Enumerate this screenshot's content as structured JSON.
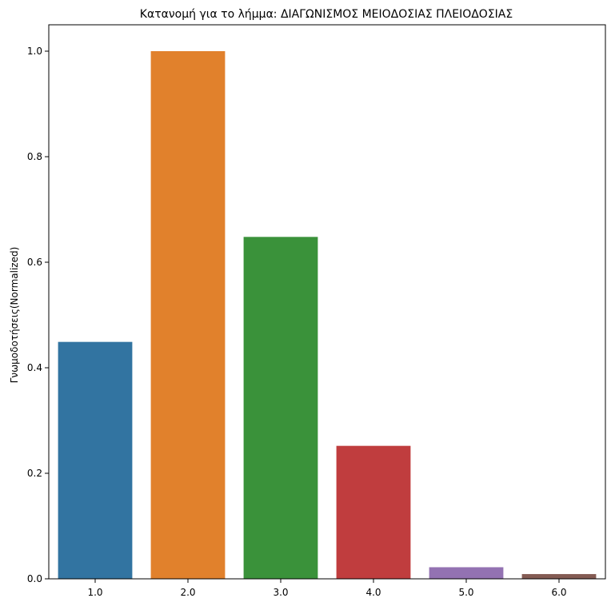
{
  "chart_data": {
    "type": "bar",
    "title": "Κατανομή για το λήμμα: ΔΙΑΓΩΝΙΣΜΟΣ ΜΕΙΟΔΟΣΙΑΣ ΠΛΕΙΟΔΟΣΙΑΣ",
    "xlabel": "",
    "ylabel": "Γνωμοδοτήσεις(Normalized)",
    "categories": [
      "1.0",
      "2.0",
      "3.0",
      "4.0",
      "5.0",
      "6.0"
    ],
    "values": [
      0.449,
      1.0,
      0.648,
      0.252,
      0.022,
      0.009
    ],
    "colors": [
      "#3274a1",
      "#e1812c",
      "#3a923a",
      "#c03d3e",
      "#9372b2",
      "#845b53"
    ],
    "ylim": [
      0,
      1.05
    ],
    "yticks": [
      0.0,
      0.2,
      0.4,
      0.6,
      0.8,
      1.0
    ],
    "ytick_labels": [
      "0.0",
      "0.2",
      "0.4",
      "0.6",
      "0.8",
      "1.0"
    ],
    "grid": false,
    "legend": "none"
  }
}
